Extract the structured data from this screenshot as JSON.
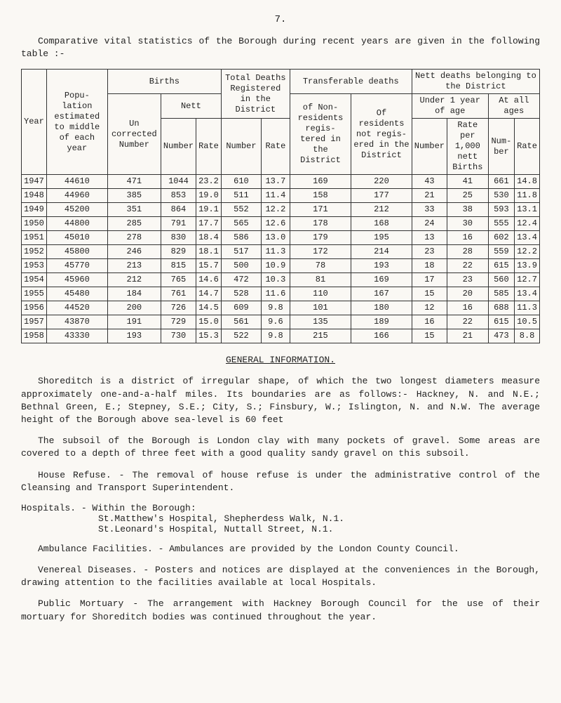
{
  "page_number": "7.",
  "intro": "Comparative vital statistics of the Borough during recent years are given in the following table :-",
  "table": {
    "head": {
      "year": "Year",
      "pop": "Popu-\nlation\nestimated\nto\nmiddle of\neach\nyear",
      "births": "Births",
      "un": "Un\ncorrected\nNumber",
      "nett": "Nett",
      "nett_num": "Number",
      "nett_rate": "Rate",
      "total_deaths": "Total Deaths\nRegistered in\nthe District",
      "td_num": "Number",
      "td_rate": "Rate",
      "transferable": "Transferable\ndeaths",
      "of_non": "of Non-\nresidents\nregis-\ntered in\nthe\nDistrict",
      "of_res": "Of\nresidents\nnot regis-\nered in\nthe\nDistrict",
      "nett_belong": "Nett deaths belonging\nto the District",
      "under1": "Under 1 year\nof age",
      "u1_num": "Number",
      "u1_rate": "Rate\nper\n1,000\nnett\nBirths",
      "atall": "At all\nages",
      "aa_num": "Num-\nber",
      "aa_rate": "Rate"
    },
    "rows": [
      {
        "y": "1947",
        "p": "44610",
        "un": "471",
        "nn": "1044",
        "nr": "23.2",
        "tn": "610",
        "tr": "13.7",
        "nonres": "169",
        "res": "220",
        "u1n": "43",
        "u1r": "41",
        "an": "661",
        "ar": "14.8"
      },
      {
        "y": "1948",
        "p": "44960",
        "un": "385",
        "nn": "853",
        "nr": "19.0",
        "tn": "511",
        "tr": "11.4",
        "nonres": "158",
        "res": "177",
        "u1n": "21",
        "u1r": "25",
        "an": "530",
        "ar": "11.8"
      },
      {
        "y": "1949",
        "p": "45200",
        "un": "351",
        "nn": "864",
        "nr": "19.1",
        "tn": "552",
        "tr": "12.2",
        "nonres": "171",
        "res": "212",
        "u1n": "33",
        "u1r": "38",
        "an": "593",
        "ar": "13.1"
      },
      {
        "y": "1950",
        "p": "44800",
        "un": "285",
        "nn": "791",
        "nr": "17.7",
        "tn": "565",
        "tr": "12.6",
        "nonres": "178",
        "res": "168",
        "u1n": "24",
        "u1r": "30",
        "an": "555",
        "ar": "12.4"
      },
      {
        "y": "1951",
        "p": "45010",
        "un": "278",
        "nn": "830",
        "nr": "18.4",
        "tn": "586",
        "tr": "13.0",
        "nonres": "179",
        "res": "195",
        "u1n": "13",
        "u1r": "16",
        "an": "602",
        "ar": "13.4"
      },
      {
        "y": "1952",
        "p": "45800",
        "un": "246",
        "nn": "829",
        "nr": "18.1",
        "tn": "517",
        "tr": "11.3",
        "nonres": "172",
        "res": "214",
        "u1n": "23",
        "u1r": "28",
        "an": "559",
        "ar": "12.2"
      },
      {
        "y": "1953",
        "p": "45770",
        "un": "213",
        "nn": "815",
        "nr": "15.7",
        "tn": "500",
        "tr": "10.9",
        "nonres": "78",
        "res": "193",
        "u1n": "18",
        "u1r": "22",
        "an": "615",
        "ar": "13.9"
      },
      {
        "y": "1954",
        "p": "45960",
        "un": "212",
        "nn": "765",
        "nr": "14.6",
        "tn": "472",
        "tr": "10.3",
        "nonres": "81",
        "res": "169",
        "u1n": "17",
        "u1r": "23",
        "an": "560",
        "ar": "12.7"
      },
      {
        "y": "1955",
        "p": "45480",
        "un": "184",
        "nn": "761",
        "nr": "14.7",
        "tn": "528",
        "tr": "11.6",
        "nonres": "110",
        "res": "167",
        "u1n": "15",
        "u1r": "20",
        "an": "585",
        "ar": "13.4"
      },
      {
        "y": "1956",
        "p": "44520",
        "un": "200",
        "nn": "726",
        "nr": "14.5",
        "tn": "609",
        "tr": "9.8",
        "nonres": "101",
        "res": "180",
        "u1n": "12",
        "u1r": "16",
        "an": "688",
        "ar": "11.3"
      },
      {
        "y": "1957",
        "p": "43870",
        "un": "191",
        "nn": "729",
        "nr": "15.0",
        "tn": "561",
        "tr": "9.6",
        "nonres": "135",
        "res": "189",
        "u1n": "16",
        "u1r": "22",
        "an": "615",
        "ar": "10.5"
      },
      {
        "y": "1958",
        "p": "43330",
        "un": "193",
        "nn": "730",
        "nr": "15.3",
        "tn": "522",
        "tr": "9.8",
        "nonres": "215",
        "res": "166",
        "u1n": "15",
        "u1r": "21",
        "an": "473",
        "ar": "8.8"
      }
    ]
  },
  "gen_info_title": "GENERAL INFORMATION.",
  "para1": "Shoreditch is a district of irregular shape, of which the two longest diameters measure approximately one-and-a-half miles.  Its boundaries are as follows:- Hackney, N. and N.E.; Bethnal Green, E.; Stepney, S.E.; City, S.; Finsbury, W.; Islington, N. and N.W.  The average height of the Borough above sea-level is 60 feet",
  "para2": "The subsoil of the Borough is London clay with many pockets of gravel. Some areas are covered to a depth of three feet with a good quality sandy gravel on this subsoil.",
  "para3": "House Refuse. - The removal of house refuse is under the administrative control of the Cleansing and Transport Superintendent.",
  "hospitals_lead": "Hospitals. - Within the Borough:",
  "hospitals_l1": "St.Matthew's Hospital, Shepherdess Walk, N.1.",
  "hospitals_l2": "St.Leonard's Hospital, Nuttall Street, N.1.",
  "para_amb": "Ambulance Facilities. - Ambulances are provided by the London County Council.",
  "para_ven": "Venereal Diseases. - Posters and notices are displayed at the conveniences in the Borough, drawing attention to the facilities available at local Hospitals.",
  "para_mort": "Public Mortuary - The arrangement with Hackney Borough Council for the use of their mortuary for Shoreditch bodies was continued throughout the year."
}
